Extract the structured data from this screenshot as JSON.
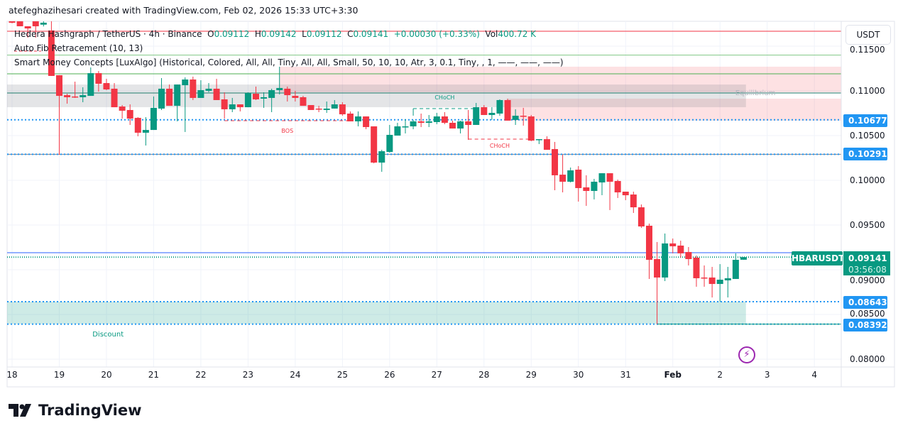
{
  "watermark": "atefeghazihesari created with TradingView.com, Feb 02, 2026 15:33 UTC+3:30",
  "legend": {
    "symbol": "Hedera Hashgraph / TetherUS · 4h · Binance",
    "o_label": "O",
    "o": "0.09112",
    "h_label": "H",
    "h": "0.09142",
    "l_label": "L",
    "l": "0.09112",
    "c_label": "C",
    "c": "0.09141",
    "change": "+0.00030 (+0.33%)",
    "vol_label": "Vol",
    "vol": "400.72 K",
    "indicators": [
      "Auto Fib Retracement (10, 13)",
      "Smart Money Concepts [LuxAlgo] (Historical, Colored, All, All, Tiny, All, All, Small, 50, 10, 10, Atr, 3, 0.1, Tiny, , 1, ——, ——, ——)"
    ]
  },
  "currency_button": "USDT",
  "symbol_label": "HBARUSDT",
  "last_price": "0.09141",
  "countdown": "03:56:08",
  "price_labels": [
    "0.10677",
    "0.10291",
    "0.08643",
    "0.08392"
  ],
  "logo": "TradingView",
  "icons": {
    "alert": "lightning-icon",
    "logo": "tradingview-logo-icon"
  },
  "colors": {
    "up": "#089981",
    "down": "#f23645",
    "level_blue": "#2196f3",
    "premium": "#f23645",
    "discount": "#089981",
    "equilibrium": "#b2b5be",
    "grid": "#f0f3fa"
  },
  "chart_data": {
    "type": "candlestick",
    "interval": "4h",
    "y_ticks": [
      "0.11500",
      "0.11000",
      "0.10500",
      "0.10000",
      "0.09500",
      "0.09000",
      "0.08500",
      "0.08000"
    ],
    "x_ticks": [
      "18",
      "19",
      "20",
      "21",
      "22",
      "23",
      "24",
      "25",
      "26",
      "27",
      "28",
      "29",
      "30",
      "31",
      "Feb",
      "2",
      "3",
      "4"
    ],
    "candles_ohlc": [
      [
        0.1179,
        0.118,
        0.11755,
        0.11762
      ],
      [
        0.11778,
        0.1179,
        0.11722,
        0.11722
      ],
      [
        0.11722,
        0.11722,
        0.11595,
        0.11698
      ],
      [
        0.11778,
        0.1179,
        0.11595,
        0.11722
      ],
      [
        0.1174,
        0.118,
        0.1172,
        0.11762
      ],
      [
        0.11675,
        0.1185,
        0.11167,
        0.11167
      ],
      [
        0.11175,
        0.11175,
        0.10286,
        0.10944
      ],
      [
        0.10952,
        0.10968,
        0.10857,
        0.10929
      ],
      [
        0.10937,
        0.11103,
        0.10921,
        0.10929
      ],
      [
        0.10929,
        0.1104,
        0.10873,
        0.10952
      ],
      [
        0.10944,
        0.11262,
        0.10944,
        0.11198
      ],
      [
        0.11198,
        0.11222,
        0.10992,
        0.11079
      ],
      [
        0.11087,
        0.11135,
        0.11008,
        0.11016
      ],
      [
        0.11024,
        0.11087,
        0.10817,
        0.10817
      ],
      [
        0.10825,
        0.10841,
        0.1069,
        0.10778
      ],
      [
        0.10786,
        0.10849,
        0.10619,
        0.1069
      ],
      [
        0.10698,
        0.10706,
        0.10492,
        0.10532
      ],
      [
        0.10532,
        0.10706,
        0.10389,
        0.10563
      ],
      [
        0.10563,
        0.10937,
        0.10563,
        0.1081
      ],
      [
        0.10802,
        0.11143,
        0.10786,
        0.11024
      ],
      [
        0.11024,
        0.11071,
        0.10833,
        0.10833
      ],
      [
        0.10833,
        0.11071,
        0.10659,
        0.11071
      ],
      [
        0.11063,
        0.11151,
        0.1054,
        0.11127
      ],
      [
        0.11127,
        0.11159,
        0.10897,
        0.10921
      ],
      [
        0.10921,
        0.11119,
        0.10921,
        0.11008
      ],
      [
        0.11,
        0.11087,
        0.10984,
        0.11024
      ],
      [
        0.11024,
        0.11135,
        0.10897,
        0.10897
      ],
      [
        0.10905,
        0.10984,
        0.1069,
        0.10794
      ],
      [
        0.10794,
        0.10921,
        0.10762,
        0.10849
      ],
      [
        0.10849,
        0.10849,
        0.1077,
        0.10817
      ],
      [
        0.10817,
        0.10984,
        0.10817,
        0.10976
      ],
      [
        0.10968,
        0.11048,
        0.10897,
        0.10905
      ],
      [
        0.10913,
        0.10984,
        0.1081,
        0.10929
      ],
      [
        0.10921,
        0.11024,
        0.10762,
        0.11008
      ],
      [
        0.11008,
        0.1127,
        0.1096,
        0.11032
      ],
      [
        0.11024,
        0.11048,
        0.10881,
        0.10952
      ],
      [
        0.10944,
        0.11,
        0.10881,
        0.10921
      ],
      [
        0.10929,
        0.10944,
        0.10833,
        0.10833
      ],
      [
        0.10841,
        0.10841,
        0.10786,
        0.10786
      ],
      [
        0.10802,
        0.10833,
        0.10762,
        0.10794
      ],
      [
        0.10786,
        0.10881,
        0.10754,
        0.10802
      ],
      [
        0.10802,
        0.10897,
        0.10802,
        0.10849
      ],
      [
        0.10849,
        0.10873,
        0.10722,
        0.10738
      ],
      [
        0.10746,
        0.1077,
        0.10659,
        0.10659
      ],
      [
        0.10659,
        0.1077,
        0.10603,
        0.10714
      ],
      [
        0.10714,
        0.10714,
        0.10571,
        0.10595
      ],
      [
        0.10603,
        0.10603,
        0.1019,
        0.10198
      ],
      [
        0.10198,
        0.10341,
        0.10095,
        0.10325
      ],
      [
        0.10317,
        0.10619,
        0.1031,
        0.10508
      ],
      [
        0.105,
        0.10643,
        0.105,
        0.10603
      ],
      [
        0.10595,
        0.10683,
        0.10524,
        0.10603
      ],
      [
        0.10603,
        0.10675,
        0.10571,
        0.10659
      ],
      [
        0.10659,
        0.10746,
        0.10595,
        0.10643
      ],
      [
        0.10643,
        0.1073,
        0.10595,
        0.10659
      ],
      [
        0.10651,
        0.10754,
        0.10627,
        0.10714
      ],
      [
        0.10714,
        0.10762,
        0.10627,
        0.10643
      ],
      [
        0.10643,
        0.10667,
        0.10579,
        0.10579
      ],
      [
        0.10579,
        0.10667,
        0.10524,
        0.10659
      ],
      [
        0.10659,
        0.10786,
        0.10452,
        0.10619
      ],
      [
        0.10619,
        0.10865,
        0.10619,
        0.10817
      ],
      [
        0.10817,
        0.10841,
        0.1073,
        0.1073
      ],
      [
        0.1073,
        0.10817,
        0.10675,
        0.10754
      ],
      [
        0.10746,
        0.10905,
        0.10722,
        0.10897
      ],
      [
        0.10897,
        0.10913,
        0.10667,
        0.10667
      ],
      [
        0.10675,
        0.10794,
        0.10619,
        0.10722
      ],
      [
        0.10722,
        0.1081,
        0.10611,
        0.10714
      ],
      [
        0.10714,
        0.1073,
        0.10437,
        0.10444
      ],
      [
        0.10452,
        0.1046,
        0.10405,
        0.1046
      ],
      [
        0.1046,
        0.10492,
        0.10341,
        0.10341
      ],
      [
        0.10349,
        0.10429,
        0.09889,
        0.10056
      ],
      [
        0.10063,
        0.10286,
        0.09865,
        0.09984
      ],
      [
        0.09984,
        0.10143,
        0.09976,
        0.10111
      ],
      [
        0.10119,
        0.10159,
        0.09762,
        0.09913
      ],
      [
        0.09921,
        0.10056,
        0.09714,
        0.09881
      ],
      [
        0.09881,
        0.10016,
        0.09786,
        0.09984
      ],
      [
        0.09976,
        0.10079,
        0.09833,
        0.10079
      ],
      [
        0.10079,
        0.10079,
        0.09667,
        0.09984
      ],
      [
        0.09992,
        0.10008,
        0.09802,
        0.09865
      ],
      [
        0.09873,
        0.09873,
        0.09778,
        0.09833
      ],
      [
        0.09841,
        0.09873,
        0.09635,
        0.09698
      ],
      [
        0.09698,
        0.0973,
        0.09468,
        0.09484
      ],
      [
        0.09492,
        0.09516,
        0.08897,
        0.09111
      ],
      [
        0.09119,
        0.0931,
        0.08392,
        0.08913
      ],
      [
        0.08913,
        0.09405,
        0.08873,
        0.09294
      ],
      [
        0.09294,
        0.09349,
        0.09183,
        0.09262
      ],
      [
        0.0927,
        0.09325,
        0.09135,
        0.09183
      ],
      [
        0.09198,
        0.09254,
        0.09048,
        0.09119
      ],
      [
        0.09135,
        0.09159,
        0.0881,
        0.08905
      ],
      [
        0.08913,
        0.09048,
        0.0881,
        0.08905
      ],
      [
        0.08913,
        0.09032,
        0.0869,
        0.08841
      ],
      [
        0.08841,
        0.09063,
        0.08643,
        0.08889
      ],
      [
        0.08881,
        0.09032,
        0.0869,
        0.08905
      ],
      [
        0.08897,
        0.09183,
        0.08897,
        0.09111
      ],
      [
        0.09112,
        0.09142,
        0.09112,
        0.09141
      ]
    ],
    "levels": [
      {
        "price": 0.11667,
        "style": "solid",
        "color": "#f23645"
      },
      {
        "price": 0.114,
        "style": "solid",
        "color": "#81c784"
      },
      {
        "price": 0.1119,
        "style": "solid",
        "color": "#4caf50"
      },
      {
        "price": 0.10976,
        "style": "solid",
        "color": "#1b7a6b"
      },
      {
        "price": 0.10677,
        "style": "dotted",
        "color": "#2196f3"
      },
      {
        "price": 0.10291,
        "style": "solid",
        "color": "#787b86"
      },
      {
        "price": 0.10291,
        "style": "dotted",
        "color": "#2196f3"
      },
      {
        "price": 0.0919,
        "style": "solid",
        "color": "#2962ff"
      },
      {
        "price": 0.09141,
        "style": "dotted",
        "color": "#089981"
      },
      {
        "price": 0.08643,
        "style": "dotted",
        "color": "#2196f3"
      },
      {
        "price": 0.08392,
        "style": "dotted",
        "color": "#2196f3"
      },
      {
        "price": 0.08392,
        "style": "solid",
        "color": "#089981",
        "from_bar": 82
      }
    ],
    "zones": [
      {
        "name": "premium",
        "top": 0.1127,
        "bottom": 0.10984,
        "from_bar": 34,
        "to": "right",
        "color": "rgba(242,54,69,0.15)"
      },
      {
        "name": "premium-lower",
        "top": 0.10913,
        "bottom": 0.10667,
        "from_bar": 63,
        "to": "right",
        "color": "rgba(242,54,69,0.15)"
      },
      {
        "name": "equilibrium",
        "top": 0.11071,
        "bottom": 0.10817,
        "from_bar": -1,
        "to_bar": 93.3,
        "color": "rgba(120,123,134,0.2)"
      },
      {
        "name": "discount",
        "top": 0.08643,
        "bottom": 0.08392,
        "from_bar": -1,
        "to_bar": 93.3,
        "color": "rgba(8,153,129,0.2)"
      }
    ],
    "structures": [
      {
        "label": "BOS",
        "price": 0.10667,
        "from_bar": 27,
        "to_bar": 43,
        "color": "#f23645",
        "label_bar": 35,
        "label_price": 0.1053
      },
      {
        "label": "CHoCH",
        "price": 0.10802,
        "from_bar": 51,
        "to_bar": 59,
        "color": "#089981",
        "label_bar": 55,
        "label_price": 0.10905
      },
      {
        "label": "CHoCH",
        "price": 0.1046,
        "from_bar": 58,
        "to_bar": 66,
        "color": "#f23645",
        "label_bar": 62,
        "label_price": 0.10365
      }
    ],
    "zone_labels": [
      {
        "text": "Equilibrium",
        "bar": 94.5,
        "price": 0.10952,
        "color": "#b2b5be"
      },
      {
        "text": "Discount",
        "bar": 12.2,
        "price": 0.08254,
        "color": "#089981"
      }
    ]
  }
}
